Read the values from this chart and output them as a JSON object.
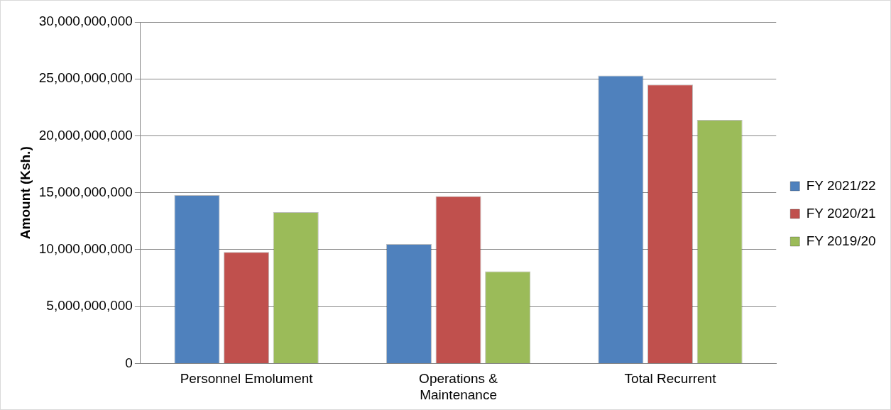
{
  "chart_data": {
    "type": "bar",
    "ylabel": "Amount (Ksh.)",
    "categories": [
      "Personnel Emolument",
      "Operations & Maintenance",
      "Total Recurrent"
    ],
    "series": [
      {
        "name": "FY 2021/22",
        "color": "#4f81bd",
        "values": [
          14800000000,
          10500000000,
          25300000000
        ]
      },
      {
        "name": "FY 2020/21",
        "color": "#c0504d",
        "values": [
          9800000000,
          14700000000,
          24500000000
        ]
      },
      {
        "name": "FY 2019/20",
        "color": "#9bbb59",
        "values": [
          13300000000,
          8100000000,
          21400000000
        ]
      }
    ],
    "ylim": [
      0,
      30000000000
    ],
    "yticks": [
      {
        "value": 0,
        "label": "0"
      },
      {
        "value": 5000000000,
        "label": "5,000,000,000"
      },
      {
        "value": 10000000000,
        "label": "10,000,000,000"
      },
      {
        "value": 15000000000,
        "label": "15,000,000,000"
      },
      {
        "value": 20000000000,
        "label": "20,000,000,000"
      },
      {
        "value": 25000000000,
        "label": "25,000,000,000"
      },
      {
        "value": 30000000000,
        "label": "30,000,000,000"
      }
    ],
    "grid": "y",
    "legend": "right"
  }
}
